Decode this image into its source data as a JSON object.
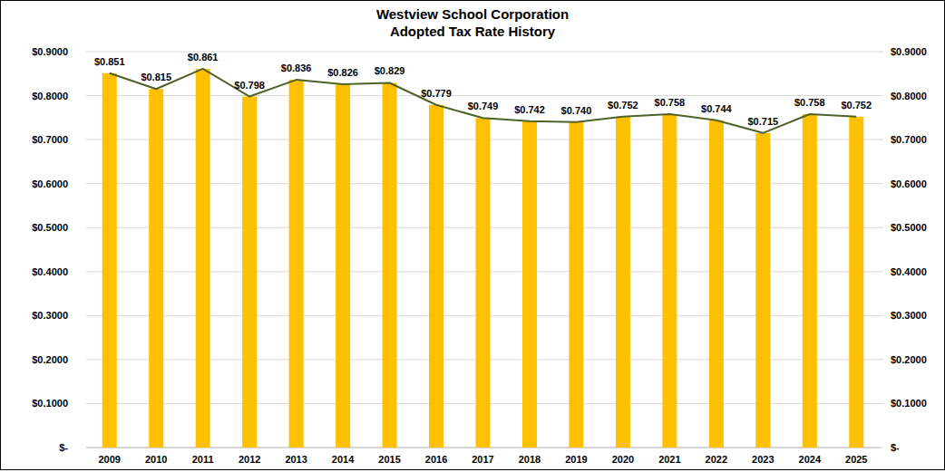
{
  "chart_data": {
    "type": "bar",
    "title": "Westview School Corporation",
    "subtitle": "Adopted Tax Rate History",
    "categories": [
      "2009",
      "2010",
      "2011",
      "2012",
      "2013",
      "2014",
      "2015",
      "2016",
      "2017",
      "2018",
      "2019",
      "2020",
      "2021",
      "2022",
      "2023",
      "2024",
      "2025"
    ],
    "series": [
      {
        "type": "bar",
        "color": "#ffc000",
        "values": [
          0.851,
          0.815,
          0.861,
          0.798,
          0.836,
          0.826,
          0.829,
          0.779,
          0.749,
          0.742,
          0.74,
          0.752,
          0.758,
          0.744,
          0.715,
          0.758,
          0.752
        ],
        "value_labels": [
          "$0.851",
          "$0.815",
          "$0.861",
          "$0.798",
          "$0.836",
          "$0.826",
          "$0.829",
          "$0.779",
          "$0.749",
          "$0.742",
          "$0.740",
          "$0.752",
          "$0.758",
          "$0.744",
          "$0.715",
          "$0.758",
          "$0.752"
        ]
      },
      {
        "type": "line",
        "color": "#4f6228",
        "marker": "none",
        "line_style": "solid",
        "values": [
          0.851,
          0.815,
          0.861,
          0.798,
          0.836,
          0.826,
          0.829,
          0.779,
          0.749,
          0.742,
          0.74,
          0.752,
          0.758,
          0.744,
          0.715,
          0.758,
          0.752
        ]
      }
    ],
    "data_labels": true,
    "grid": true,
    "ylim": [
      0,
      0.9
    ],
    "yticks": [
      {
        "value": 0,
        "label": "$-"
      },
      {
        "value": 0.1,
        "label": "$0.1000"
      },
      {
        "value": 0.2,
        "label": "$0.2000"
      },
      {
        "value": 0.3,
        "label": "$0.3000"
      },
      {
        "value": 0.4,
        "label": "$0.4000"
      },
      {
        "value": 0.5,
        "label": "$0.5000"
      },
      {
        "value": 0.6,
        "label": "$0.6000"
      },
      {
        "value": 0.7,
        "label": "$0.7000"
      },
      {
        "value": 0.8,
        "label": "$0.8000"
      },
      {
        "value": 0.9,
        "label": "$0.9000"
      }
    ],
    "y2lim": [
      0,
      0.9
    ],
    "y2ticks": [
      {
        "value": 0,
        "label": "$-"
      },
      {
        "value": 0.1,
        "label": "$0.1000"
      },
      {
        "value": 0.2,
        "label": "$0.2000"
      },
      {
        "value": 0.3,
        "label": "$0.3000"
      },
      {
        "value": 0.4,
        "label": "$0.4000"
      },
      {
        "value": 0.5,
        "label": "$0.5000"
      },
      {
        "value": 0.6,
        "label": "$0.6000"
      },
      {
        "value": 0.7,
        "label": "$0.7000"
      },
      {
        "value": 0.8,
        "label": "$0.8000"
      },
      {
        "value": 0.9,
        "label": "$0.9000"
      }
    ]
  }
}
